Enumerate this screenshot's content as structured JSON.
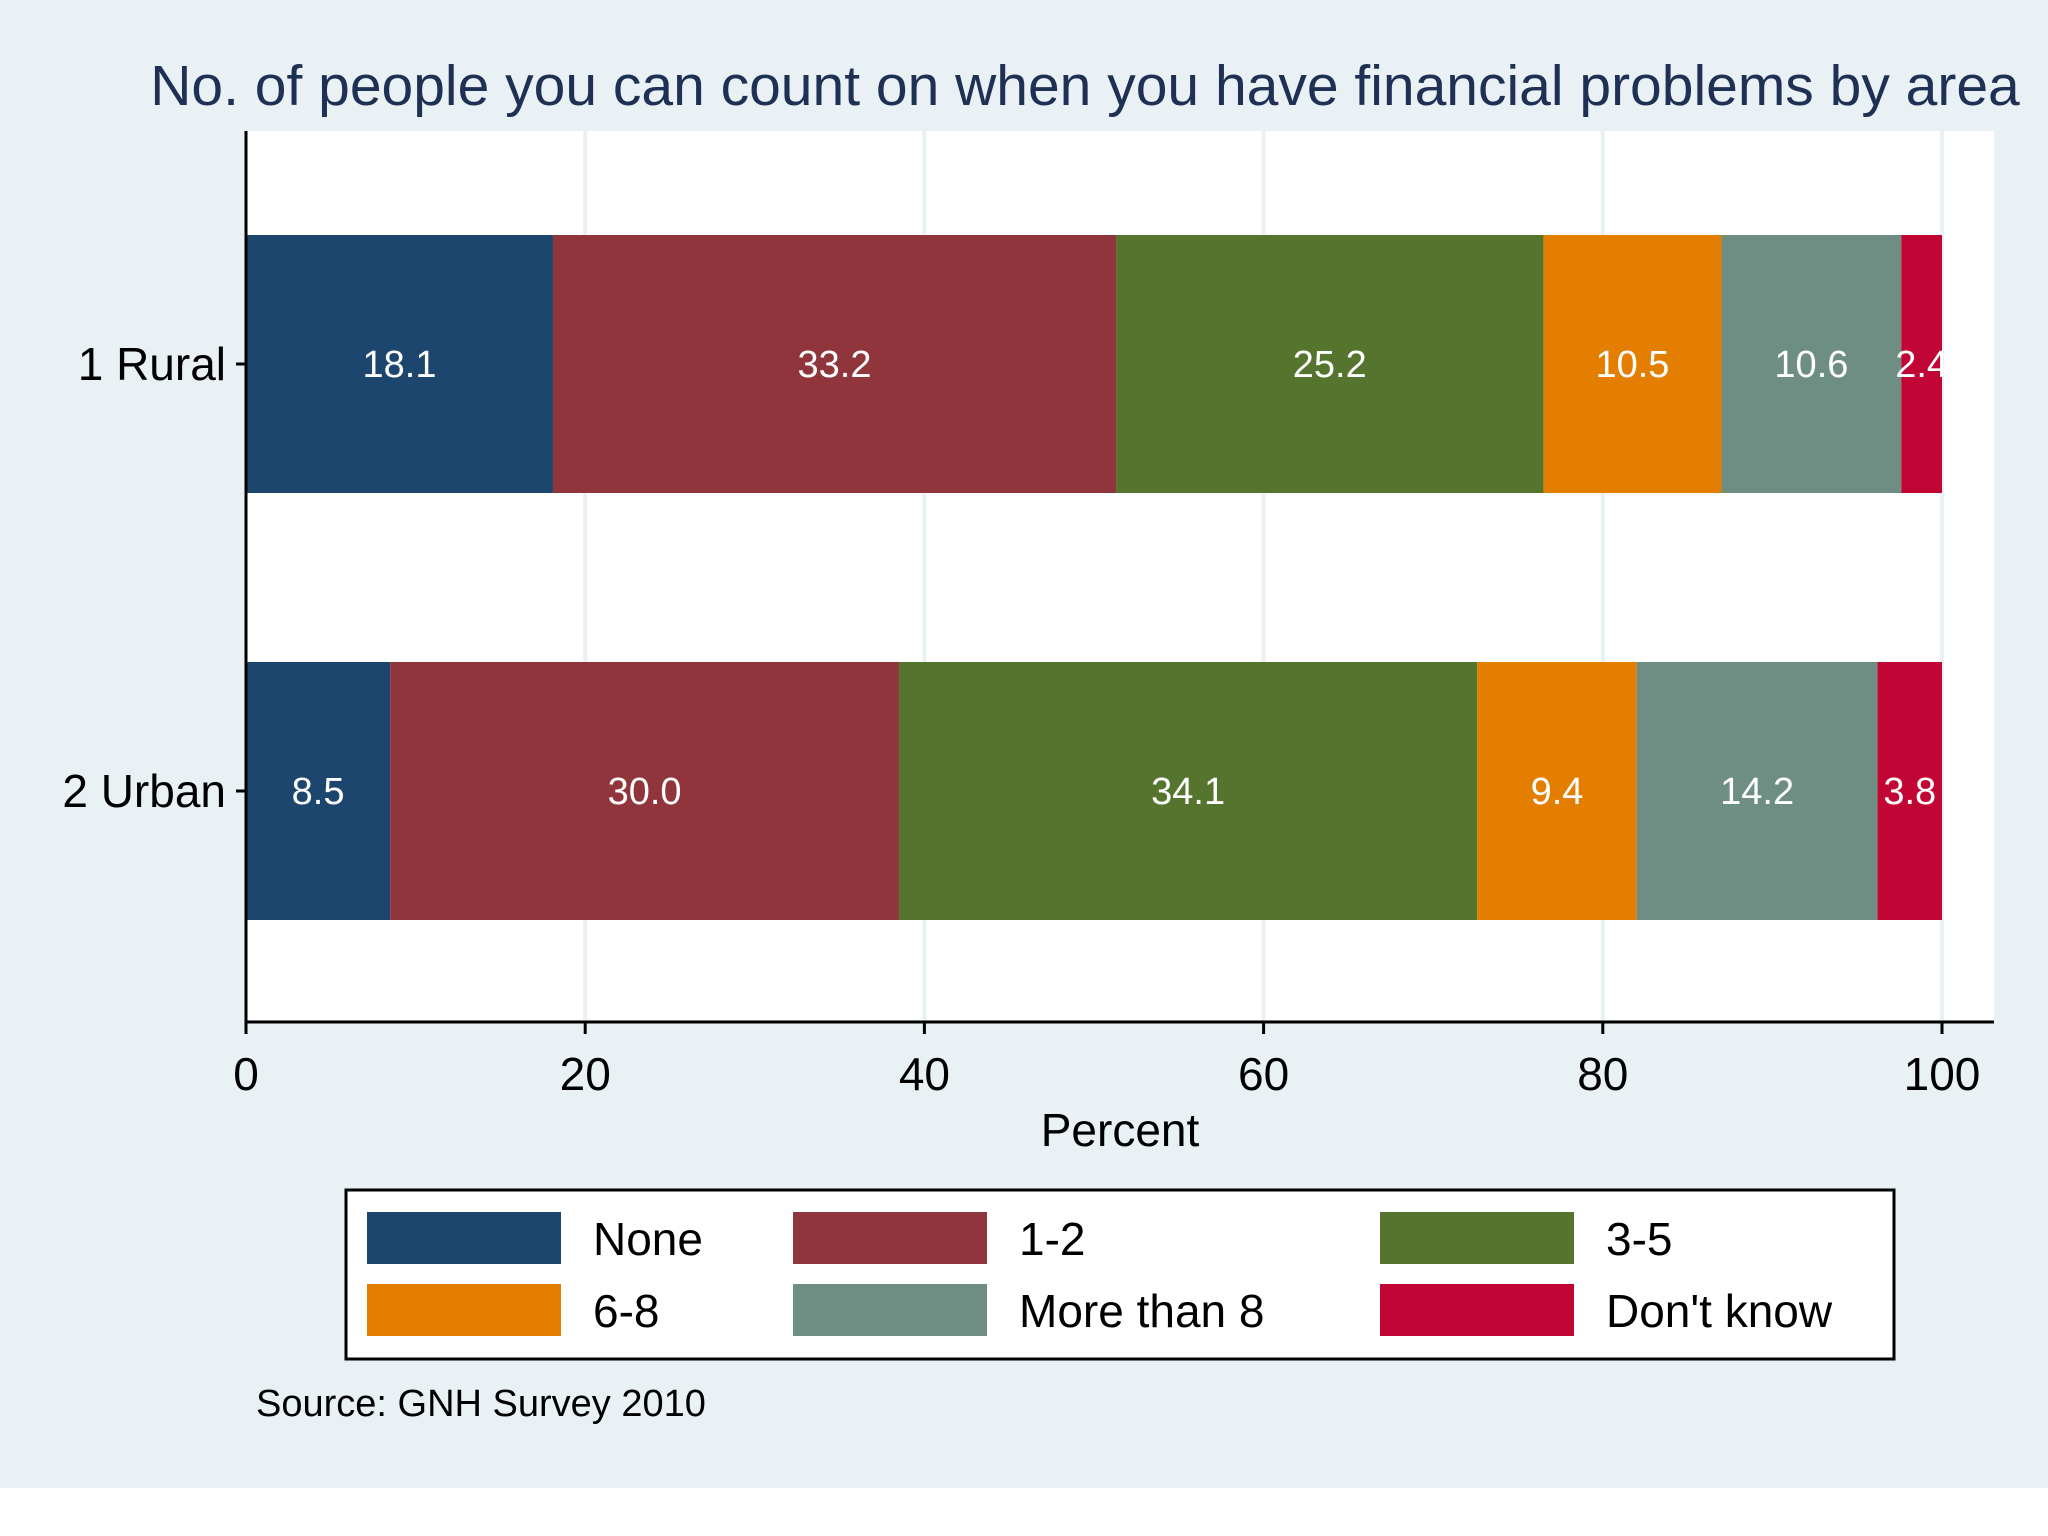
{
  "chart_data": {
    "type": "bar",
    "orientation": "horizontal",
    "stacked": true,
    "title": "No. of people you can count on when you have financial problems by area",
    "xlabel": "Percent",
    "ylabel": "",
    "xlim": [
      0,
      100
    ],
    "xticks": [
      0,
      20,
      40,
      60,
      80,
      100
    ],
    "grid": true,
    "legend_position": "bottom",
    "note": "Source: GNH Survey 2010",
    "categories": [
      "1 Rural",
      "2 Urban"
    ],
    "series": [
      {
        "name": "None",
        "color": "#1d466f",
        "values": [
          18.1,
          8.5
        ],
        "labels": [
          "18.1",
          "8.5"
        ]
      },
      {
        "name": "1-2",
        "color": "#90353b",
        "values": [
          33.2,
          30.0
        ],
        "labels": [
          "33.2",
          "30.0"
        ]
      },
      {
        "name": "3-5",
        "color": "#55752f",
        "values": [
          25.2,
          34.1
        ],
        "labels": [
          "25.2",
          "34.1"
        ]
      },
      {
        "name": "6-8",
        "color": "#e37e00",
        "values": [
          10.5,
          9.4
        ],
        "labels": [
          "10.5",
          "9.4"
        ]
      },
      {
        "name": "More than 8",
        "color": "#6e8e84",
        "values": [
          10.6,
          14.2
        ],
        "labels": [
          "10.6",
          "14.2"
        ]
      },
      {
        "name": "Don't know",
        "color": "#c10534",
        "values": [
          2.4,
          3.8
        ],
        "labels": [
          "2.4",
          "3.8"
        ]
      }
    ]
  }
}
